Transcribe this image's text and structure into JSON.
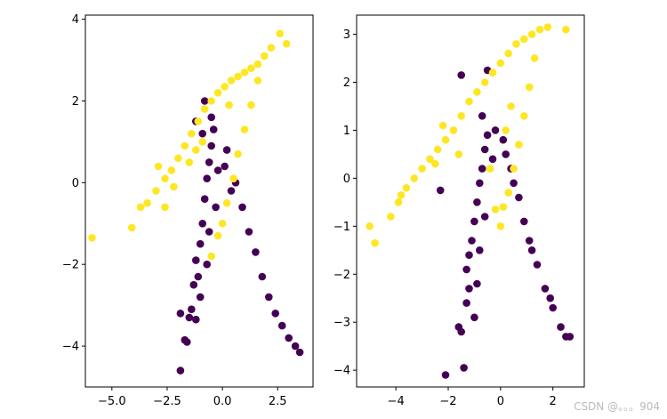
{
  "chart_data": [
    {
      "type": "scatter",
      "xlim": [
        -6.2,
        4.1
      ],
      "ylim": [
        -5.0,
        4.1
      ],
      "xticks": [
        -5.0,
        -2.5,
        0.0,
        2.5
      ],
      "xtick_labels": [
        "−5.0",
        "−2.5",
        "0.0",
        "2.5"
      ],
      "yticks": [
        -4,
        -2,
        0,
        2,
        4
      ],
      "ytick_labels": [
        "−4",
        "−2",
        "0",
        "2",
        "4"
      ],
      "grid": false,
      "colors": {
        "class_0": "#440154",
        "class_1": "#fde725"
      },
      "series": [
        {
          "values": [
            [
              -1.9,
              -4.6
            ],
            [
              -1.7,
              -3.85
            ],
            [
              -1.6,
              -3.9
            ],
            [
              -1.9,
              -3.2
            ],
            [
              -1.4,
              -3.1
            ],
            [
              -1.5,
              -3.3
            ],
            [
              -1.2,
              -3.35
            ],
            [
              -1.3,
              -2.5
            ],
            [
              -1.1,
              -2.3
            ],
            [
              -1.2,
              -1.9
            ],
            [
              -1.0,
              -1.5
            ],
            [
              -0.9,
              -1.0
            ],
            [
              -0.8,
              -0.4
            ],
            [
              -0.7,
              0.1
            ],
            [
              -0.6,
              0.5
            ],
            [
              -0.5,
              0.9
            ],
            [
              -0.4,
              1.3
            ],
            [
              -0.8,
              2.0
            ],
            [
              -1.2,
              1.5
            ],
            [
              -0.9,
              1.2
            ],
            [
              -0.5,
              1.6
            ],
            [
              0.2,
              0.8
            ],
            [
              0.6,
              0.0
            ],
            [
              0.9,
              -0.6
            ],
            [
              1.2,
              -1.2
            ],
            [
              1.5,
              -1.7
            ],
            [
              1.8,
              -2.3
            ],
            [
              2.1,
              -2.8
            ],
            [
              2.4,
              -3.2
            ],
            [
              2.7,
              -3.5
            ],
            [
              3.0,
              -3.8
            ],
            [
              3.3,
              -4.0
            ],
            [
              3.5,
              -4.15
            ],
            [
              -1.0,
              -2.8
            ],
            [
              -0.7,
              -2.0
            ],
            [
              -0.6,
              -1.2
            ],
            [
              -0.3,
              -0.6
            ],
            [
              -0.2,
              0.3
            ],
            [
              0.1,
              0.4
            ],
            [
              0.4,
              -0.2
            ]
          ]
        },
        {
          "values": [
            [
              -5.9,
              -1.35
            ],
            [
              -4.1,
              -1.1
            ],
            [
              -3.7,
              -0.6
            ],
            [
              -3.4,
              -0.5
            ],
            [
              -3.0,
              -0.2
            ],
            [
              -2.6,
              0.1
            ],
            [
              -2.3,
              0.3
            ],
            [
              -2.0,
              0.6
            ],
            [
              -1.7,
              0.9
            ],
            [
              -1.4,
              1.2
            ],
            [
              -1.1,
              1.5
            ],
            [
              -0.8,
              1.8
            ],
            [
              -0.5,
              2.0
            ],
            [
              -0.2,
              2.2
            ],
            [
              0.1,
              2.35
            ],
            [
              0.4,
              2.5
            ],
            [
              0.7,
              2.6
            ],
            [
              1.0,
              2.7
            ],
            [
              1.3,
              2.8
            ],
            [
              1.6,
              2.9
            ],
            [
              1.9,
              3.1
            ],
            [
              2.2,
              3.3
            ],
            [
              2.6,
              3.65
            ],
            [
              2.9,
              3.4
            ],
            [
              1.6,
              2.5
            ],
            [
              1.3,
              1.9
            ],
            [
              1.0,
              1.3
            ],
            [
              0.7,
              0.7
            ],
            [
              0.5,
              0.1
            ],
            [
              0.2,
              -0.5
            ],
            [
              0.0,
              -1.0
            ],
            [
              -0.2,
              -1.3
            ],
            [
              -0.5,
              -1.8
            ],
            [
              -2.6,
              -0.6
            ],
            [
              -2.9,
              0.4
            ],
            [
              -2.2,
              -0.1
            ],
            [
              -1.2,
              0.8
            ],
            [
              -0.9,
              1.0
            ],
            [
              -1.5,
              0.5
            ],
            [
              0.3,
              1.9
            ]
          ]
        }
      ]
    },
    {
      "type": "scatter",
      "xlim": [
        -5.5,
        3.2
      ],
      "ylim": [
        -4.35,
        3.4
      ],
      "xticks": [
        -4,
        -2,
        0,
        2
      ],
      "xtick_labels": [
        "−4",
        "−2",
        "0",
        "2"
      ],
      "yticks": [
        -4,
        -3,
        -2,
        -1,
        0,
        1,
        2,
        3
      ],
      "ytick_labels": [
        "−4",
        "−3",
        "−2",
        "−1",
        "0",
        "1",
        "2",
        "3"
      ],
      "grid": false,
      "colors": {
        "class_0": "#440154",
        "class_1": "#fde725"
      },
      "series": [
        {
          "values": [
            [
              -2.1,
              -4.1
            ],
            [
              -1.4,
              -3.95
            ],
            [
              -1.6,
              -3.1
            ],
            [
              -1.5,
              -3.2
            ],
            [
              -1.3,
              -2.6
            ],
            [
              -1.2,
              -2.3
            ],
            [
              -1.3,
              -1.9
            ],
            [
              -1.2,
              -1.6
            ],
            [
              -1.1,
              -1.3
            ],
            [
              -1.0,
              -0.9
            ],
            [
              -0.9,
              -0.5
            ],
            [
              -0.8,
              -0.1
            ],
            [
              -0.7,
              0.2
            ],
            [
              -0.6,
              0.6
            ],
            [
              -0.5,
              0.9
            ],
            [
              -0.5,
              2.25
            ],
            [
              -1.5,
              2.15
            ],
            [
              -0.7,
              1.3
            ],
            [
              -0.2,
              1.0
            ],
            [
              0.1,
              0.8
            ],
            [
              0.4,
              0.2
            ],
            [
              0.7,
              -0.4
            ],
            [
              0.9,
              -0.9
            ],
            [
              1.1,
              -1.3
            ],
            [
              1.4,
              -1.8
            ],
            [
              1.7,
              -2.3
            ],
            [
              2.0,
              -2.7
            ],
            [
              2.3,
              -3.1
            ],
            [
              2.5,
              -3.3
            ],
            [
              2.65,
              -3.3
            ],
            [
              -2.3,
              -0.25
            ],
            [
              -1.0,
              -2.9
            ],
            [
              -0.9,
              -2.2
            ],
            [
              -0.8,
              -1.5
            ],
            [
              -0.6,
              -0.8
            ],
            [
              -0.3,
              0.4
            ],
            [
              0.2,
              0.5
            ],
            [
              0.5,
              -0.1
            ],
            [
              1.2,
              -1.5
            ],
            [
              1.9,
              -2.5
            ]
          ]
        },
        {
          "values": [
            [
              -5.0,
              -1.0
            ],
            [
              -4.8,
              -1.35
            ],
            [
              -4.2,
              -0.8
            ],
            [
              -3.9,
              -0.5
            ],
            [
              -3.6,
              -0.2
            ],
            [
              -3.3,
              0.0
            ],
            [
              -3.0,
              0.2
            ],
            [
              -2.7,
              0.4
            ],
            [
              -2.4,
              0.6
            ],
            [
              -2.1,
              0.8
            ],
            [
              -1.8,
              1.0
            ],
            [
              -1.5,
              1.3
            ],
            [
              -1.2,
              1.6
            ],
            [
              -0.9,
              1.8
            ],
            [
              -0.6,
              2.0
            ],
            [
              -0.3,
              2.2
            ],
            [
              0.0,
              2.4
            ],
            [
              0.3,
              2.6
            ],
            [
              0.6,
              2.8
            ],
            [
              0.9,
              2.9
            ],
            [
              1.2,
              3.0
            ],
            [
              1.5,
              3.1
            ],
            [
              1.8,
              3.15
            ],
            [
              2.5,
              3.1
            ],
            [
              1.3,
              2.5
            ],
            [
              1.1,
              1.9
            ],
            [
              0.9,
              1.3
            ],
            [
              0.7,
              0.7
            ],
            [
              0.5,
              0.2
            ],
            [
              0.3,
              -0.3
            ],
            [
              0.1,
              -0.6
            ],
            [
              0.0,
              -1.0
            ],
            [
              -0.2,
              -0.65
            ],
            [
              -0.4,
              0.2
            ],
            [
              -3.8,
              -0.35
            ],
            [
              -2.2,
              1.1
            ],
            [
              -1.6,
              0.5
            ],
            [
              0.4,
              1.5
            ],
            [
              0.2,
              1.0
            ],
            [
              -2.5,
              0.3
            ]
          ]
        }
      ]
    }
  ],
  "watermark": "CSDN @。。。904"
}
